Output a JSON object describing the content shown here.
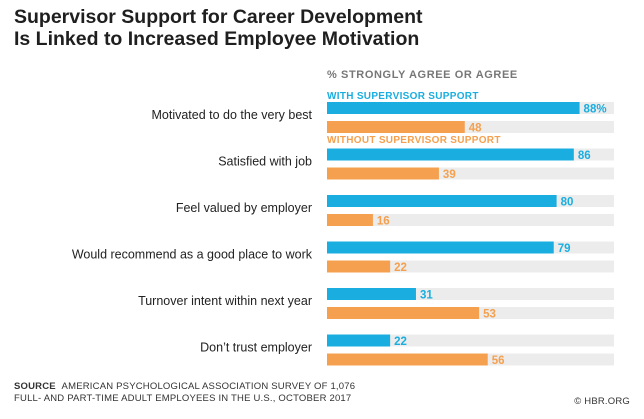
{
  "title_line1": "Supervisor Support for Career Development",
  "title_line2": "Is Linked to Increased Employee Motivation",
  "source_label": "SOURCE",
  "source_line1": "AMERICAN PSYCHOLOGICAL ASSOCIATION SURVEY OF 1,076",
  "source_line2": "FULL- AND PART-TIME ADULT EMPLOYEES IN THE U.S., OCTOBER 2017",
  "credit": "© HBR.ORG",
  "colors": {
    "with_support": "#1aaee0",
    "without_support": "#f5a04e",
    "track": "#ececec",
    "header_text": "#777777"
  },
  "chart_data": {
    "type": "bar",
    "orientation": "horizontal",
    "header": "% STRONGLY AGREE OR AGREE",
    "categories": [
      "Motivated to do the very best",
      "Satisfied with job",
      "Feel valued by employer",
      "Would recommend as a good place to work",
      "Turnover intent within next year",
      "Don’t trust employer"
    ],
    "series": [
      {
        "name": "WITH SUPERVISOR SUPPORT",
        "values": [
          88,
          86,
          80,
          79,
          31,
          22
        ],
        "labels": [
          "88%",
          "86",
          "80",
          "79",
          "31",
          "22"
        ]
      },
      {
        "name": "WITHOUT SUPERVISOR  SUPPORT",
        "values": [
          48,
          39,
          16,
          22,
          53,
          56
        ],
        "labels": [
          "48",
          "39",
          "16",
          "22",
          "53",
          "56"
        ]
      }
    ],
    "xlim": [
      0,
      100
    ],
    "legend": "inline-above-first-bars"
  }
}
